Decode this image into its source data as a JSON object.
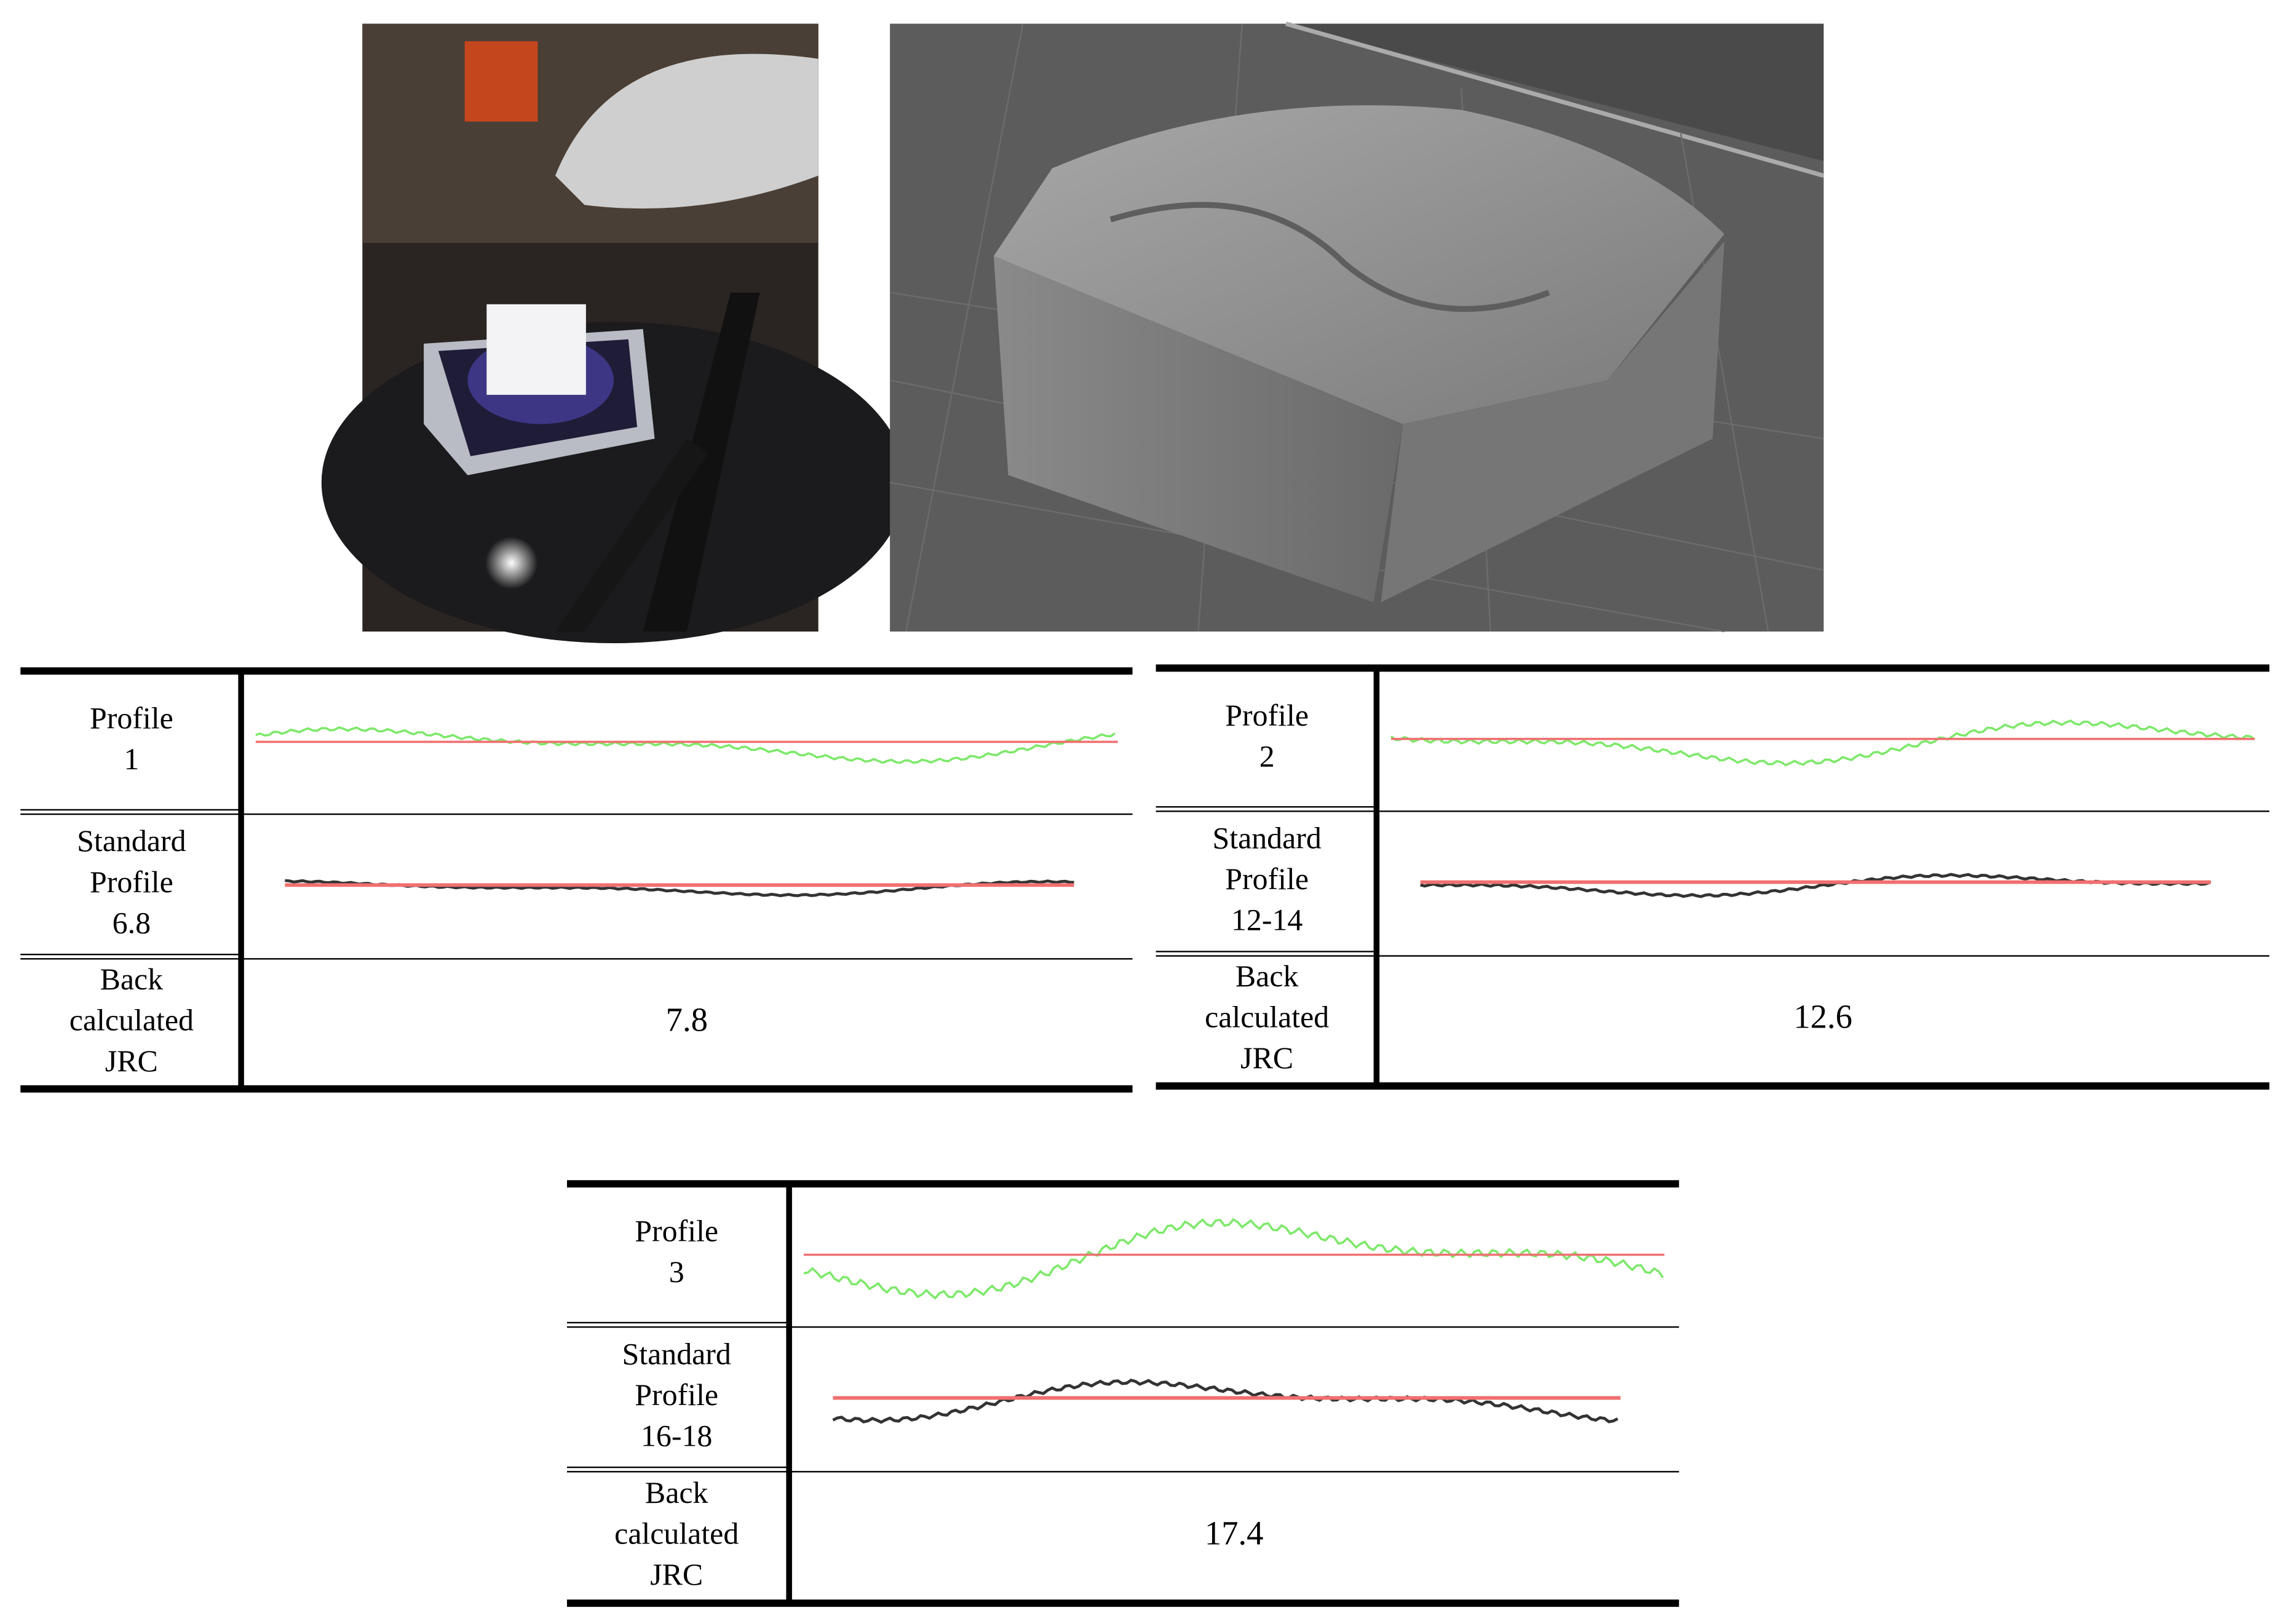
{
  "tables": [
    {
      "rows": [
        {
          "label": [
            "Profile",
            "1"
          ]
        },
        {
          "label": [
            "Standard",
            "Profile",
            "6.8"
          ]
        },
        {
          "label": [
            "Back",
            "calculated",
            "JRC"
          ],
          "value": "7.8"
        }
      ]
    },
    {
      "rows": [
        {
          "label": [
            "Profile",
            "2"
          ]
        },
        {
          "label": [
            "Standard",
            "Profile",
            "12-14"
          ]
        },
        {
          "label": [
            "Back",
            "calculated",
            "JRC"
          ],
          "value": "12.6"
        }
      ]
    },
    {
      "rows": [
        {
          "label": [
            "Profile",
            "3"
          ]
        },
        {
          "label": [
            "Standard",
            "Profile",
            "16-18"
          ]
        },
        {
          "label": [
            "Back",
            "calculated",
            "JRC"
          ],
          "value": "17.4"
        }
      ]
    }
  ]
}
